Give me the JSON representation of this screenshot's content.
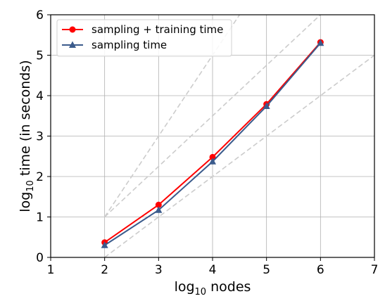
{
  "chart_data": {
    "type": "line",
    "xlabel_main": "log",
    "xlabel_sub": "10",
    "xlabel_rest": " nodes",
    "ylabel_main": "log",
    "ylabel_sub": "10",
    "ylabel_rest": " time (in seconds)",
    "xlim": [
      1,
      7
    ],
    "ylim": [
      0,
      6
    ],
    "xticks": [
      1,
      2,
      3,
      4,
      5,
      6,
      7
    ],
    "yticks": [
      0,
      1,
      2,
      3,
      4,
      5,
      6
    ],
    "grid": true,
    "legend_position": "top-left",
    "series": [
      {
        "name": "sampling + training time",
        "color": "#ff0000",
        "marker": "circle",
        "x": [
          2,
          3,
          4,
          5,
          6
        ],
        "y": [
          0.37,
          1.3,
          2.48,
          3.79,
          5.32
        ]
      },
      {
        "name": "sampling time",
        "color": "#3b5b8c",
        "marker": "triangle",
        "x": [
          2,
          3,
          4,
          5,
          6
        ],
        "y": [
          0.3,
          1.17,
          2.37,
          3.74,
          5.3
        ]
      }
    ],
    "reference_lines": [
      {
        "x": [
          2,
          7
        ],
        "y": [
          0,
          5
        ],
        "color": "#cccccc"
      },
      {
        "x": [
          2,
          6
        ],
        "y": [
          1,
          6
        ],
        "color": "#cccccc"
      },
      {
        "x": [
          2,
          6.0
        ],
        "y": [
          1,
          9
        ],
        "color": "#cccccc"
      }
    ]
  }
}
